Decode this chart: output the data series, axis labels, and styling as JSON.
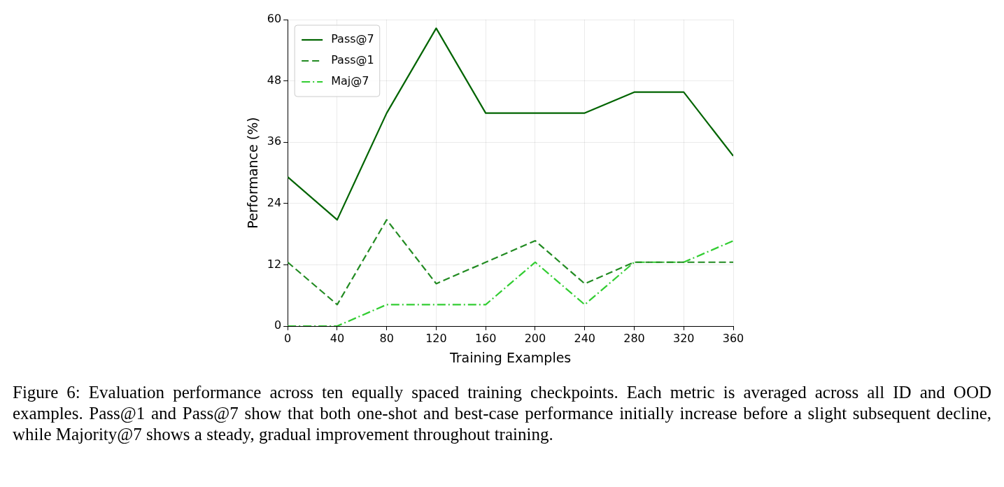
{
  "chart_data": {
    "type": "line",
    "xlabel": "Training Examples",
    "ylabel": "Performance (%)",
    "x": [
      0,
      40,
      80,
      120,
      160,
      200,
      240,
      280,
      320,
      360
    ],
    "xlim": [
      0,
      360
    ],
    "xticks": [
      0,
      40,
      80,
      120,
      160,
      200,
      240,
      280,
      320,
      360
    ],
    "ylim": [
      0,
      60
    ],
    "yticks": [
      0,
      12,
      24,
      36,
      48,
      60
    ],
    "grid": true,
    "legend": "top left",
    "marker": "none",
    "series": [
      {
        "name": "Pass@7",
        "color": "#006400",
        "line_style": "solid",
        "values": [
          29.2,
          20.8,
          41.7,
          58.3,
          41.7,
          41.7,
          41.7,
          45.8,
          45.8,
          33.3
        ]
      },
      {
        "name": "Pass@1",
        "color": "#228b22",
        "line_style": "dashed",
        "values": [
          12.5,
          4.2,
          20.8,
          8.3,
          12.5,
          16.7,
          8.3,
          12.5,
          12.5,
          12.5
        ]
      },
      {
        "name": "Maj@7",
        "color": "#32cd32",
        "line_style": "dashdot",
        "values": [
          0,
          0,
          4.2,
          4.2,
          4.2,
          12.5,
          4.2,
          12.5,
          12.5,
          16.7
        ]
      }
    ],
    "annotations": [
      "Figure 6: Evaluation performance across ten equally spaced training checkpoints. Each metric is averaged across all ID and OOD examples. Pass@1 and Pass@7 show that both one-shot and best-case performance initially increase before a slight subsequent decline, while Majority@7 shows a steady, gradual improvement throughout training."
    ]
  }
}
